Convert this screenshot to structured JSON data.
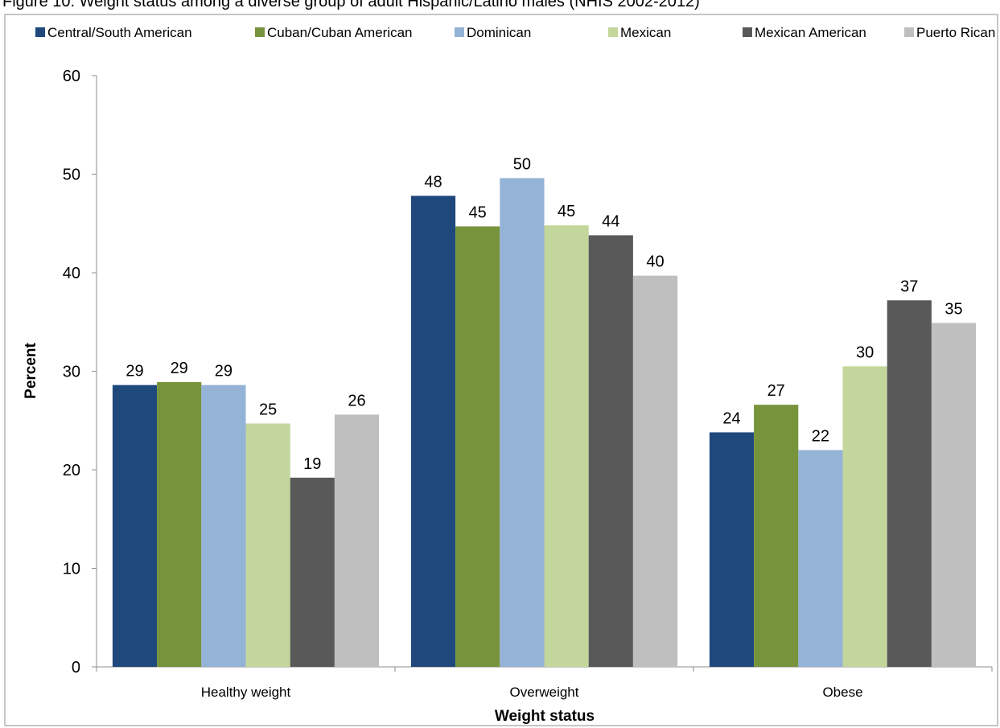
{
  "chart_data": {
    "type": "bar",
    "title": "Figure 10. Weight status among a diverse group of adult Hispanic/Latino males (NHIS 2002-2012)",
    "xlabel": "Weight status",
    "ylabel": "Percent",
    "ylim": [
      0,
      60
    ],
    "yticks": [
      "0",
      "10",
      "20",
      "30",
      "40",
      "50",
      "60"
    ],
    "grid": false,
    "legend_position": "top",
    "categories": [
      "Healthy weight",
      "Overweight",
      "Obese"
    ],
    "series": [
      {
        "name": "Central/South American",
        "color": "#1f497d",
        "values": [
          28.6,
          47.8,
          23.8
        ],
        "labels": [
          "29",
          "48",
          "24"
        ]
      },
      {
        "name": "Cuban/Cuban American",
        "color": "#77933c",
        "values": [
          28.9,
          44.7,
          26.6
        ],
        "labels": [
          "29",
          "45",
          "27"
        ]
      },
      {
        "name": "Dominican",
        "color": "#95b3d7",
        "values": [
          28.6,
          49.6,
          22.0
        ],
        "labels": [
          "29",
          "50",
          "22"
        ]
      },
      {
        "name": "Mexican",
        "color": "#c3d69b",
        "values": [
          24.7,
          44.8,
          30.5
        ],
        "labels": [
          "25",
          "45",
          "30"
        ]
      },
      {
        "name": "Mexican American",
        "color": "#595959",
        "values": [
          19.2,
          43.8,
          37.2
        ],
        "labels": [
          "19",
          "44",
          "37"
        ]
      },
      {
        "name": "Puerto Rican",
        "color": "#bfbfbf",
        "values": [
          25.6,
          39.7,
          34.9
        ],
        "labels": [
          "26",
          "40",
          "35"
        ]
      }
    ]
  }
}
